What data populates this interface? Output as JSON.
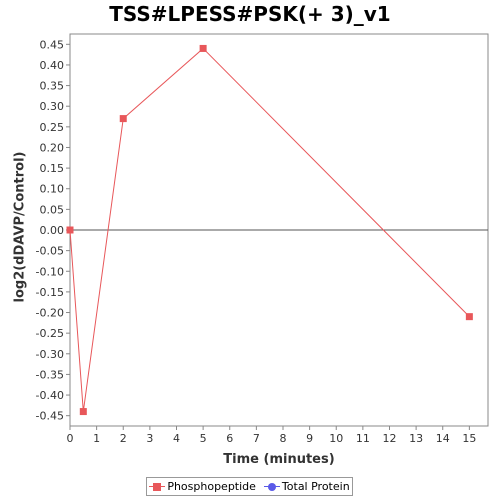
{
  "chart_data": {
    "type": "line",
    "title": "TSS#LPESS#PSK(+ 3)_v1",
    "xlabel": "Time (minutes)",
    "ylabel": "log2(dDAVP/Control)",
    "xlim": [
      0,
      15.7
    ],
    "ylim": [
      -0.475,
      0.475
    ],
    "xticks": [
      0,
      1,
      2,
      3,
      4,
      5,
      6,
      7,
      8,
      9,
      10,
      11,
      12,
      13,
      14,
      15
    ],
    "yticks": [
      0.45,
      0.4,
      0.35,
      0.3,
      0.25,
      0.2,
      0.15,
      0.1,
      0.05,
      0.0,
      -0.05,
      -0.1,
      -0.15,
      -0.2,
      -0.25,
      -0.3,
      -0.35,
      -0.4,
      -0.45
    ],
    "ytick_labels": [
      "0.45",
      "0.40",
      "0.35",
      "0.30",
      "0.25",
      "0.20",
      "0.15",
      "0.10",
      "0.05",
      "0.00",
      "-0.05",
      "-0.10",
      "-0.15",
      "-0.20",
      "-0.25",
      "-0.30",
      "-0.35",
      "-0.40",
      "-0.45"
    ],
    "grid": false,
    "zero_line": true,
    "legend_position": "bottom",
    "series": [
      {
        "name": "Phosphopeptide",
        "color": "#e8575a",
        "marker": "square",
        "x": [
          0,
          0.5,
          2,
          5,
          15
        ],
        "y": [
          0.0,
          -0.44,
          0.27,
          0.44,
          -0.21
        ]
      },
      {
        "name": "Total Protein",
        "color": "#5a5ae8",
        "marker": "circle",
        "x": [],
        "y": []
      }
    ]
  }
}
